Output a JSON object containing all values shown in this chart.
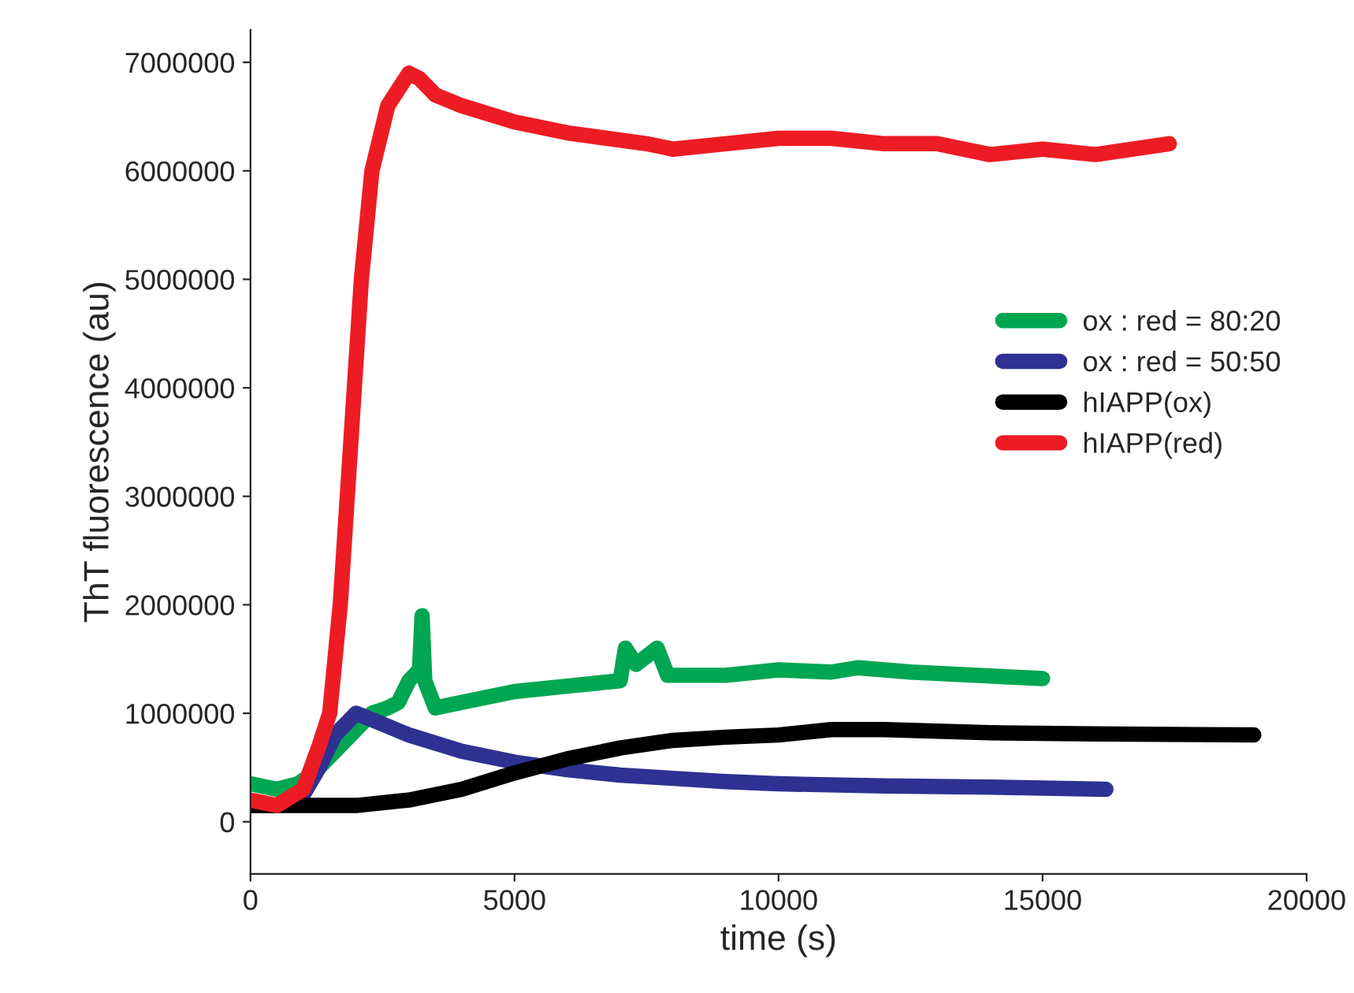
{
  "chart_data": {
    "type": "line",
    "xlabel": "time (s)",
    "ylabel": "ThT fluorescence (au)",
    "xlim": [
      0,
      20000
    ],
    "xticks": [
      0,
      5000,
      10000,
      15000,
      20000
    ],
    "ylim": [
      -480000,
      7300000
    ],
    "yticks": [
      0,
      1000000,
      2000000,
      3000000,
      4000000,
      5000000,
      6000000,
      7000000
    ],
    "grid": false,
    "legend": "right",
    "line_style": "solid",
    "series": [
      {
        "name": "ox : red = 80:20",
        "color": "#00a651",
        "x": [
          0,
          500,
          900,
          1200,
          1500,
          1800,
          2000,
          2300,
          2600,
          2800,
          3000,
          3200,
          3250,
          3300,
          3500,
          4000,
          5000,
          6000,
          7000,
          7100,
          7300,
          7700,
          7900,
          9000,
          10000,
          11000,
          11500,
          12500,
          15000
        ],
        "values": [
          350000,
          300000,
          350000,
          450000,
          600000,
          750000,
          850000,
          1000000,
          1050000,
          1100000,
          1300000,
          1400000,
          1900000,
          1300000,
          1050000,
          1100000,
          1200000,
          1250000,
          1300000,
          1600000,
          1450000,
          1600000,
          1350000,
          1350000,
          1400000,
          1380000,
          1420000,
          1380000,
          1320000
        ]
      },
      {
        "name": "ox : red = 50:50",
        "color": "#2e3192",
        "x": [
          0,
          500,
          1000,
          1300,
          1600,
          2000,
          2500,
          3000,
          4000,
          5000,
          6000,
          7000,
          8000,
          9000,
          10000,
          12000,
          14000,
          16200
        ],
        "values": [
          150000,
          150000,
          250000,
          500000,
          800000,
          1000000,
          900000,
          800000,
          650000,
          550000,
          480000,
          430000,
          400000,
          370000,
          350000,
          330000,
          320000,
          300000
        ]
      },
      {
        "name": "hIAPP(ox)",
        "color": "#000000",
        "x": [
          0,
          2000,
          3000,
          4000,
          5000,
          6000,
          7000,
          8000,
          9000,
          10000,
          11000,
          12000,
          14000,
          16000,
          19000
        ],
        "values": [
          150000,
          150000,
          200000,
          300000,
          450000,
          580000,
          680000,
          750000,
          780000,
          800000,
          850000,
          850000,
          820000,
          810000,
          800000
        ]
      },
      {
        "name": "hIAPP(red)",
        "color": "#ed1c24",
        "x": [
          0,
          500,
          1000,
          1300,
          1500,
          1700,
          1900,
          2100,
          2300,
          2600,
          3000,
          3200,
          3500,
          4000,
          5000,
          6000,
          7500,
          8000,
          9000,
          10000,
          11000,
          12000,
          13000,
          14000,
          15000,
          16000,
          17400
        ],
        "values": [
          200000,
          150000,
          300000,
          700000,
          1000000,
          2000000,
          3500000,
          5000000,
          6000000,
          6600000,
          6900000,
          6850000,
          6700000,
          6600000,
          6450000,
          6350000,
          6250000,
          6200000,
          6250000,
          6300000,
          6300000,
          6250000,
          6250000,
          6150000,
          6200000,
          6150000,
          6250000
        ]
      }
    ]
  }
}
